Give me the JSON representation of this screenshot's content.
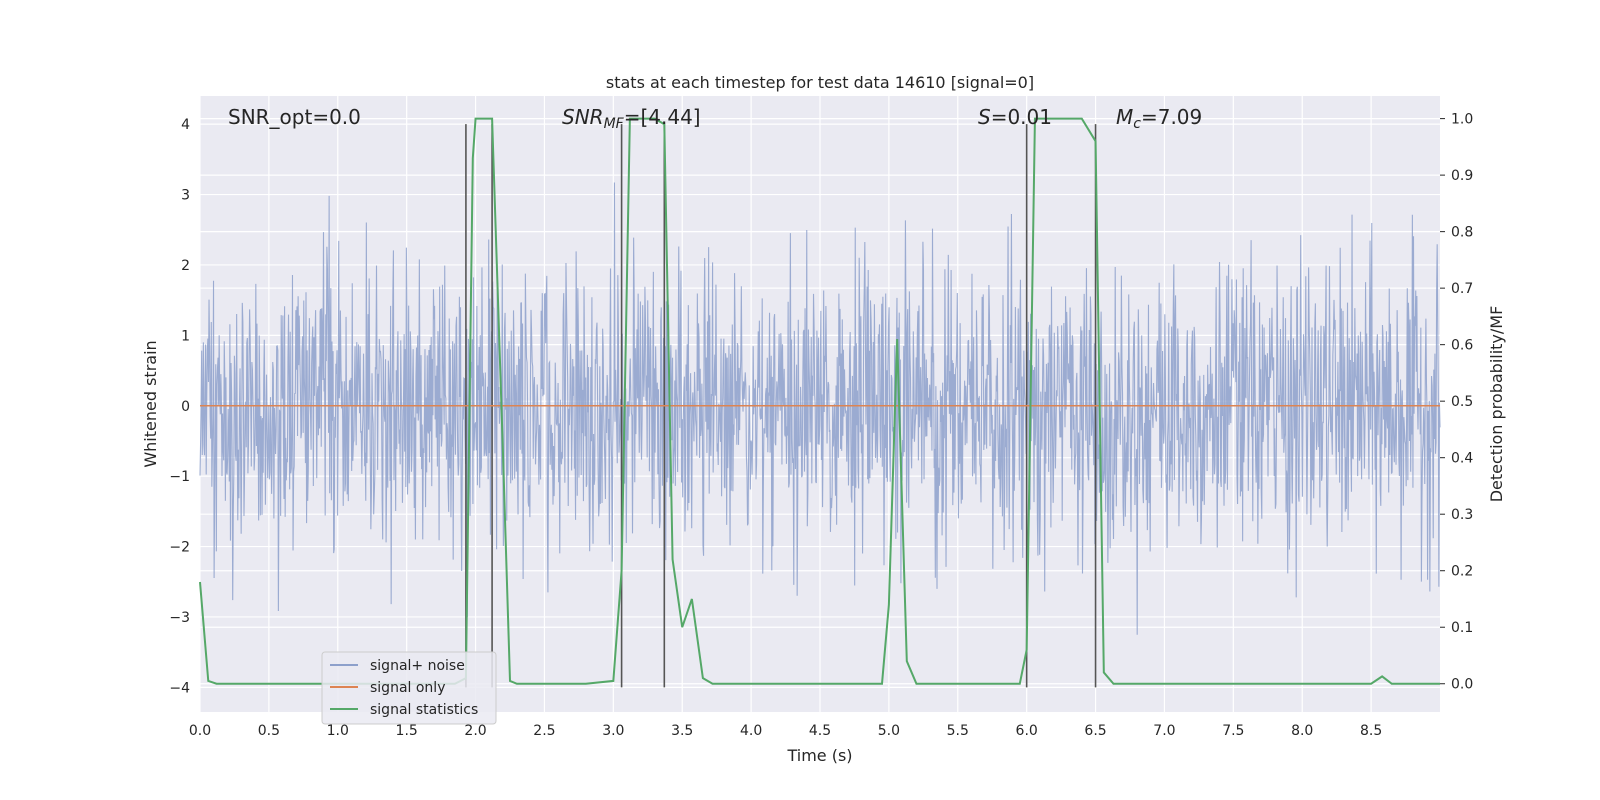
{
  "chart_data": {
    "type": "line",
    "title": "stats at each timestep for test data 14610 [signal=0]",
    "xlabel": "Time (s)",
    "ylabel": "Whitened strain",
    "y2label": "Detection probability/MF",
    "xlim": [
      0,
      9
    ],
    "ylim": [
      -4.35,
      4.4
    ],
    "y2lim": [
      -0.05,
      1.04
    ],
    "xticks": [
      "0.0",
      "0.5",
      "1.0",
      "1.5",
      "2.0",
      "2.5",
      "3.0",
      "3.5",
      "4.0",
      "4.5",
      "5.0",
      "5.5",
      "6.0",
      "6.5",
      "7.0",
      "7.5",
      "8.0",
      "8.5"
    ],
    "xtick_values": [
      0,
      0.5,
      1,
      1.5,
      2,
      2.5,
      3,
      3.5,
      4,
      4.5,
      5,
      5.5,
      6,
      6.5,
      7,
      7.5,
      8,
      8.5
    ],
    "yticks": [
      "4",
      "3",
      "2",
      "1",
      "0",
      "−1",
      "−2",
      "−3",
      "−4"
    ],
    "ytick_values": [
      4,
      3,
      2,
      1,
      0,
      -1,
      -2,
      -3,
      -4
    ],
    "y2ticks": [
      "1.0",
      "0.9",
      "0.8",
      "0.7",
      "0.6",
      "0.5",
      "0.4",
      "0.3",
      "0.2",
      "0.1",
      "0.0"
    ],
    "y2tick_values": [
      1.0,
      0.9,
      0.8,
      0.7,
      0.6,
      0.5,
      0.4,
      0.3,
      0.2,
      0.1,
      0.0
    ],
    "grid": true,
    "legend_position": "bottom-left",
    "annotations": {
      "snr_opt": "SNR_opt=0.0",
      "snr_mf_main": "SNR",
      "snr_mf_sub": "MF",
      "snr_mf_value": "=[4.44]",
      "s_var": "S",
      "s_value": "=0.01",
      "mc_var": "M",
      "mc_sub": "c",
      "mc_value": "=7.09"
    },
    "vertical_markers": [
      1.93,
      2.12,
      3.06,
      3.37,
      6.0,
      6.5
    ],
    "series": [
      {
        "name": "signal+ noise",
        "color": "#8da0cb",
        "axis": "left",
        "description_stat": "noise",
        "sample_count": 2200,
        "seed": 14610
      },
      {
        "name": "signal only",
        "color": "#dd8452",
        "axis": "left",
        "x": [
          0,
          9
        ],
        "values": [
          0,
          0
        ]
      },
      {
        "name": "signal statistics",
        "color": "#55a868",
        "axis": "right",
        "x": [
          0,
          0.06,
          0.12,
          0.5,
          1.0,
          1.5,
          1.85,
          1.93,
          1.98,
          2.0,
          2.05,
          2.1,
          2.12,
          2.2,
          2.25,
          2.3,
          2.5,
          2.8,
          3.0,
          3.06,
          3.12,
          3.2,
          3.3,
          3.37,
          3.43,
          3.5,
          3.57,
          3.65,
          3.72,
          4.0,
          4.5,
          4.95,
          5.0,
          5.06,
          5.13,
          5.2,
          5.5,
          5.95,
          6.0,
          6.06,
          6.2,
          6.4,
          6.5,
          6.56,
          6.63,
          7.0,
          7.5,
          8.0,
          8.5,
          8.58,
          8.65,
          9.0
        ],
        "values": [
          0.18,
          0.005,
          0.0,
          0.0,
          0.0,
          0.0,
          0.0,
          0.01,
          0.93,
          1.0,
          1.0,
          1.0,
          1.0,
          0.4,
          0.005,
          0.0,
          0.0,
          0.0,
          0.005,
          0.2,
          1.0,
          1.0,
          1.0,
          0.99,
          0.22,
          0.1,
          0.15,
          0.01,
          0.0,
          0.0,
          0.0,
          0.0,
          0.14,
          0.61,
          0.04,
          0.0,
          0.0,
          0.0,
          0.06,
          1.0,
          1.0,
          1.0,
          0.96,
          0.02,
          0.0,
          0.0,
          0.0,
          0.0,
          0.0,
          0.013,
          0.0,
          0.0
        ]
      }
    ]
  }
}
